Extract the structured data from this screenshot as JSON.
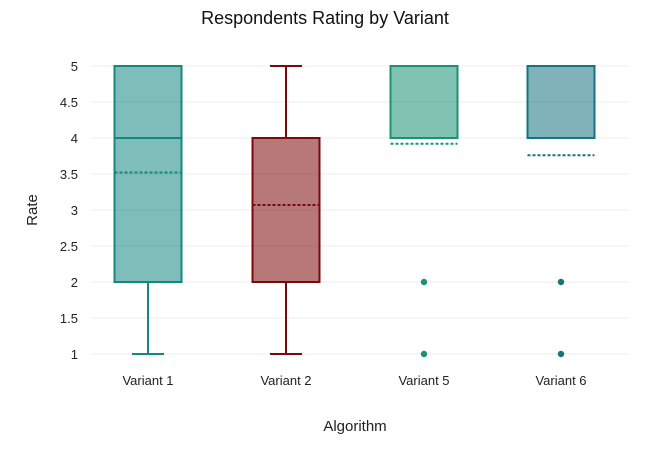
{
  "chart_data": {
    "type": "box",
    "title": "Respondents Rating by Variant",
    "xlabel": "Algorithm",
    "ylabel": "Rate",
    "ylim": [
      1,
      5
    ],
    "yticks": [
      "1",
      "1.5",
      "2",
      "2.5",
      "3",
      "3.5",
      "4",
      "4.5",
      "5"
    ],
    "grid": true,
    "categories": [
      "Variant 1",
      "Variant 2",
      "Variant 5",
      "Variant 6"
    ],
    "boxes": [
      {
        "name": "Variant 1",
        "min": 1,
        "q1": 2,
        "median": 4,
        "q3": 5,
        "max": 5,
        "mean": 3.52,
        "outliers": [],
        "color": "#14877f"
      },
      {
        "name": "Variant 2",
        "min": 1,
        "q1": 2,
        "median": 4,
        "q3": 4,
        "max": 5,
        "mean": 3.07,
        "outliers": [],
        "color": "#7a0a0a"
      },
      {
        "name": "Variant 5",
        "min": 4,
        "q1": 4,
        "median": 4,
        "q3": 5,
        "max": 5,
        "mean": 3.92,
        "outliers": [
          1,
          2
        ],
        "color": "#1a9273"
      },
      {
        "name": "Variant 6",
        "min": 4,
        "q1": 4,
        "median": 4,
        "q3": 5,
        "max": 5,
        "mean": 3.76,
        "outliers": [
          1,
          2
        ],
        "color": "#16737f"
      }
    ]
  }
}
